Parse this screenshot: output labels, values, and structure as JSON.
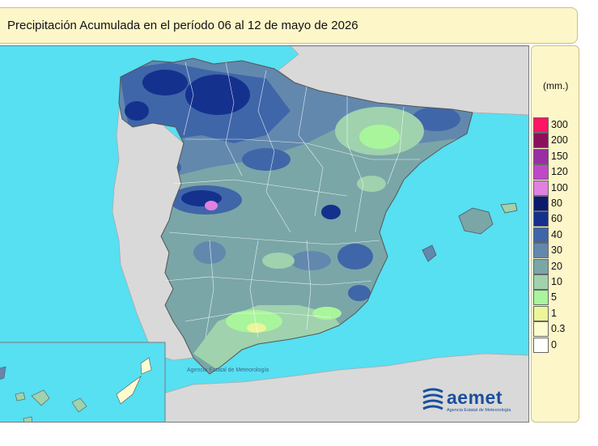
{
  "title": "Precipitación Acumulada en el período 06 al 12 de mayo de 2026",
  "legend": {
    "unit": "(mm.)",
    "classes": [
      {
        "label": "300",
        "color": "#ff1465"
      },
      {
        "label": "200",
        "color": "#8c0f5e"
      },
      {
        "label": "150",
        "color": "#9a2ea3"
      },
      {
        "label": "120",
        "color": "#c048c8"
      },
      {
        "label": "100",
        "color": "#e080e0"
      },
      {
        "label": "80",
        "color": "#0c1a6e"
      },
      {
        "label": "60",
        "color": "#15318e"
      },
      {
        "label": "40",
        "color": "#3f66a8"
      },
      {
        "label": "30",
        "color": "#6288ae"
      },
      {
        "label": "20",
        "color": "#7aa6a8"
      },
      {
        "label": "10",
        "color": "#9fd2ad"
      },
      {
        "label": "5",
        "color": "#a9f59c"
      },
      {
        "label": "1",
        "color": "#ecf59a"
      },
      {
        "label": "0.3",
        "color": "#fdfbd0"
      },
      {
        "label": "0",
        "color": "#ffffff"
      }
    ]
  },
  "map": {
    "sea_color": "#57dff2",
    "land_outside_color": "#d9d9d9"
  },
  "credit": "Agencia Estatal de Meteorología",
  "logo": {
    "name": "aemet",
    "subtitle": "Agencia Estatal de Meteorología",
    "icon": "aemet-logo-icon"
  }
}
